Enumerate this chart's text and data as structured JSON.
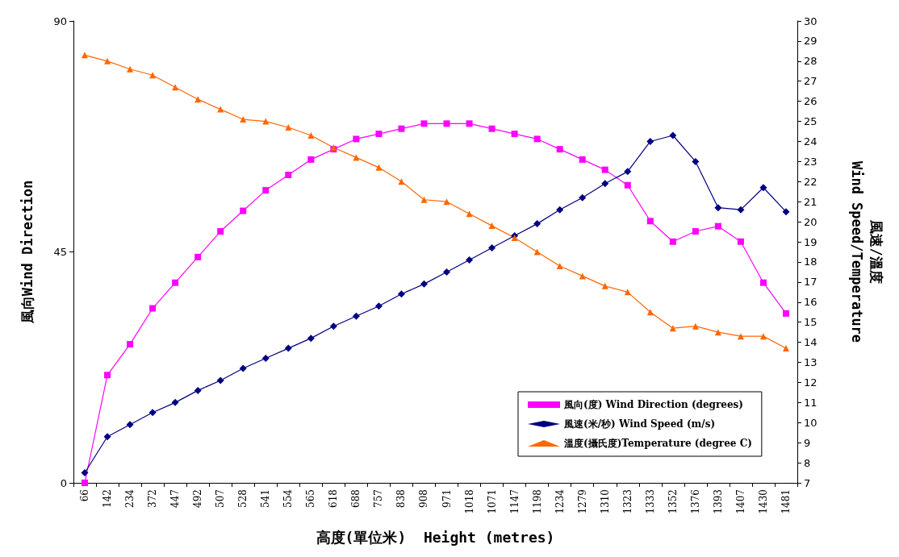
{
  "chart_data": {
    "type": "line",
    "xlabel": "高度(單位米)  Height (metres)",
    "ylabel": "風向Wind Direction",
    "y2label": "風速/溫度\nWind Speed/Temperature",
    "categories": [
      "66",
      "142",
      "234",
      "372",
      "447",
      "492",
      "507",
      "528",
      "541",
      "554",
      "565",
      "618",
      "688",
      "757",
      "838",
      "908",
      "971",
      "1018",
      "1071",
      "1147",
      "1198",
      "1234",
      "1279",
      "1310",
      "1323",
      "1333",
      "1352",
      "1376",
      "1393",
      "1407",
      "1430",
      "1481"
    ],
    "series": [
      {
        "name": "風向(度) Wind Direction (degrees)",
        "color": "#ff00ff",
        "marker": "square",
        "values": [
          0,
          21,
          27,
          34,
          39,
          44,
          49,
          53,
          57,
          60,
          63,
          65,
          67,
          68,
          69,
          70,
          70,
          70,
          69,
          68,
          67,
          65,
          63,
          61,
          58,
          51,
          47,
          49,
          50,
          47,
          39,
          33
        ]
      },
      {
        "name": "風速(米/秒) Wind Speed (m/s)",
        "color": "#000080",
        "marker": "diamond",
        "axis": "y2",
        "values": [
          7.5,
          9.3,
          9.9,
          10.5,
          11.0,
          11.6,
          12.1,
          12.7,
          13.2,
          13.7,
          14.2,
          14.8,
          15.3,
          15.8,
          16.4,
          16.9,
          17.5,
          18.1,
          18.7,
          19.3,
          19.9,
          20.6,
          21.2,
          21.9,
          22.5,
          24.0,
          24.3,
          23.0,
          20.7,
          20.6,
          21.7,
          20.5
        ]
      },
      {
        "name": "溫度(攝氏度)Temperature (degree C)",
        "color": "#ff6600",
        "marker": "triangle",
        "axis": "y2",
        "values": [
          28.3,
          28.0,
          27.6,
          27.3,
          26.7,
          26.1,
          25.6,
          25.1,
          25.0,
          24.7,
          24.3,
          23.7,
          23.2,
          22.7,
          22.0,
          21.1,
          21.0,
          20.4,
          19.8,
          19.2,
          18.5,
          17.8,
          17.3,
          16.8,
          16.5,
          15.5,
          14.7,
          14.8,
          14.5,
          14.3,
          14.3,
          13.7
        ]
      }
    ],
    "ylim": [
      0,
      90
    ],
    "yticks": [
      0,
      45,
      90
    ],
    "y2lim": [
      7,
      30
    ],
    "y2ticks": [
      7,
      8,
      9,
      10,
      11,
      12,
      13,
      14,
      15,
      16,
      17,
      18,
      19,
      20,
      21,
      22,
      23,
      24,
      25,
      26,
      27,
      28,
      29,
      30
    ],
    "grid": false,
    "legend": "bottom right",
    "line_style": "solid"
  }
}
